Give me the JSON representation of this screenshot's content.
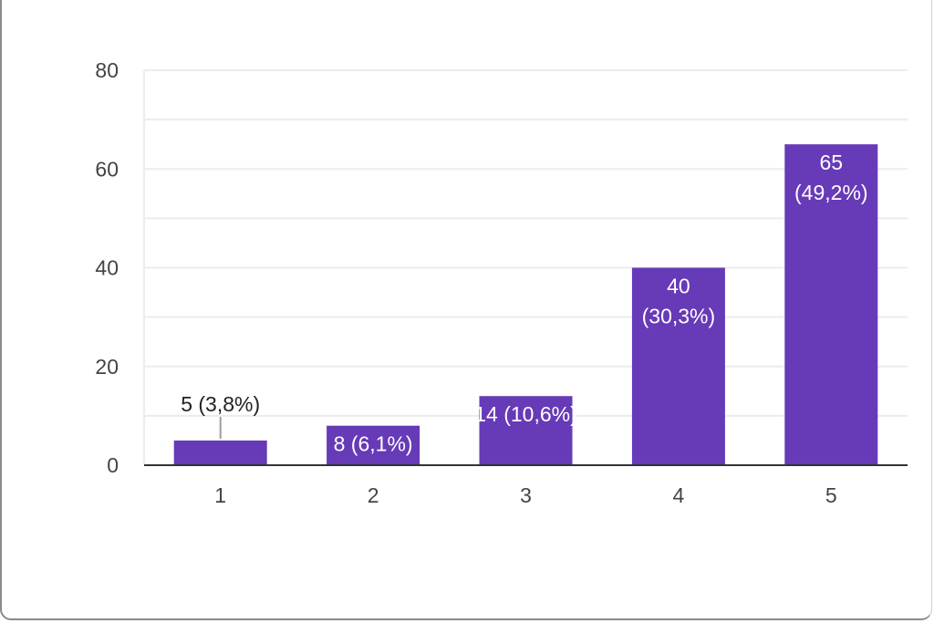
{
  "chart_data": {
    "type": "bar",
    "categories": [
      "1",
      "2",
      "3",
      "4",
      "5"
    ],
    "values": [
      5,
      8,
      14,
      40,
      65
    ],
    "percent_labels": [
      "3,8%",
      "6,1%",
      "10,6%",
      "30,3%",
      "49,2%"
    ],
    "ylim": [
      0,
      80
    ],
    "yticks": [
      0,
      20,
      40,
      60,
      80
    ],
    "grid": true,
    "bar_color": "#673ab7",
    "title": "",
    "xlabel": "",
    "ylabel": ""
  }
}
